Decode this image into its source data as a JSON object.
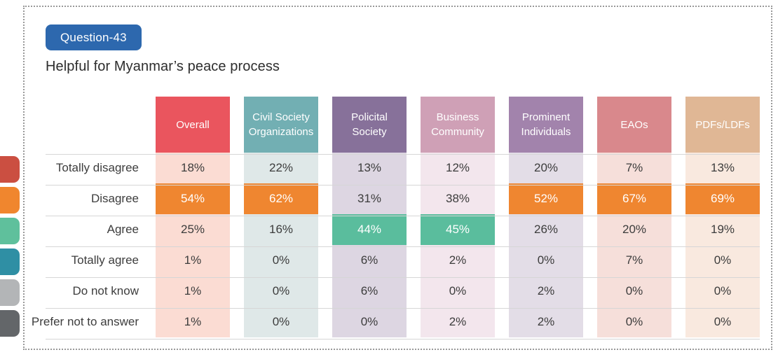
{
  "badge": {
    "label": "Question-43",
    "color": "#2d68ae"
  },
  "title": "Helpful for Myanmar’s peace process",
  "legend": [
    {
      "name": "totally-disagree",
      "color": "#cb4f41"
    },
    {
      "name": "disagree",
      "color": "#f0862e"
    },
    {
      "name": "agree",
      "color": "#5fc09c"
    },
    {
      "name": "totally-agree",
      "color": "#2f8fa4"
    },
    {
      "name": "do-not-know",
      "color": "#b3b5b7"
    },
    {
      "name": "prefer-not-to-answer",
      "color": "#636669"
    }
  ],
  "table": {
    "highlight_colors": {
      "orange": "#ef8630",
      "green": "#5abd9d"
    },
    "columns": [
      {
        "label": "Overall",
        "header_color": "#ea555e",
        "tint_color": "#fbdcd3"
      },
      {
        "label": "Civil Society Organizations",
        "header_color": "#72afb3",
        "tint_color": "#dfe8e8"
      },
      {
        "label": "Policital Society",
        "header_color": "#87719a",
        "tint_color": "#ddd6e2"
      },
      {
        "label": "Business Community",
        "header_color": "#cfa0b6",
        "tint_color": "#f3e6ed"
      },
      {
        "label": "Prominent Individuals",
        "header_color": "#a283ac",
        "tint_color": "#e3dde7"
      },
      {
        "label": "EAOs",
        "header_color": "#d9888c",
        "tint_color": "#f6dfda"
      },
      {
        "label": "PDFs/LDFs",
        "header_color": "#e0b795",
        "tint_color": "#f9e9df"
      }
    ],
    "rows": [
      {
        "label": "Totally disagree",
        "cells": [
          {
            "text": "18%"
          },
          {
            "text": "22%"
          },
          {
            "text": "13%"
          },
          {
            "text": "12%"
          },
          {
            "text": "20%"
          },
          {
            "text": "7%"
          },
          {
            "text": "13%"
          }
        ]
      },
      {
        "label": "Disagree",
        "cells": [
          {
            "text": "54%",
            "highlight": "orange"
          },
          {
            "text": "62%",
            "highlight": "orange"
          },
          {
            "text": "31%"
          },
          {
            "text": "38%"
          },
          {
            "text": "52%",
            "highlight": "orange"
          },
          {
            "text": "67%",
            "highlight": "orange"
          },
          {
            "text": "69%",
            "highlight": "orange"
          }
        ]
      },
      {
        "label": "Agree",
        "cells": [
          {
            "text": "25%"
          },
          {
            "text": "16%"
          },
          {
            "text": "44%",
            "highlight": "green"
          },
          {
            "text": "45%",
            "highlight": "green"
          },
          {
            "text": "26%"
          },
          {
            "text": "20%"
          },
          {
            "text": "19%"
          }
        ]
      },
      {
        "label": "Totally agree",
        "cells": [
          {
            "text": "1%"
          },
          {
            "text": "0%"
          },
          {
            "text": "6%"
          },
          {
            "text": "2%"
          },
          {
            "text": "0%"
          },
          {
            "text": "7%"
          },
          {
            "text": "0%"
          }
        ]
      },
      {
        "label": "Do not know",
        "cells": [
          {
            "text": "1%"
          },
          {
            "text": "0%"
          },
          {
            "text": "6%"
          },
          {
            "text": "0%"
          },
          {
            "text": "2%"
          },
          {
            "text": "0%"
          },
          {
            "text": "0%"
          }
        ]
      },
      {
        "label": "Prefer not to answer",
        "cells": [
          {
            "text": "1%"
          },
          {
            "text": "0%"
          },
          {
            "text": "0%"
          },
          {
            "text": "2%"
          },
          {
            "text": "2%"
          },
          {
            "text": "0%"
          },
          {
            "text": "0%"
          }
        ]
      }
    ]
  },
  "chart_data": {
    "type": "table",
    "title": "Helpful for Myanmar’s peace process",
    "question_label": "Question-43",
    "columns": [
      "Overall",
      "Civil Society Organizations",
      "Policital Society",
      "Business Community",
      "Prominent Individuals",
      "EAOs",
      "PDFs/LDFs"
    ],
    "rows": [
      "Totally disagree",
      "Disagree",
      "Agree",
      "Totally agree",
      "Do not know",
      "Prefer not to answer"
    ],
    "values_percent": [
      [
        18,
        22,
        13,
        12,
        20,
        7,
        13
      ],
      [
        54,
        62,
        31,
        38,
        52,
        67,
        69
      ],
      [
        25,
        16,
        44,
        45,
        26,
        20,
        19
      ],
      [
        1,
        0,
        6,
        2,
        0,
        7,
        0
      ],
      [
        1,
        0,
        6,
        0,
        2,
        0,
        0
      ],
      [
        1,
        0,
        0,
        2,
        2,
        0,
        0
      ]
    ],
    "highlighted_cells": [
      {
        "row": "Disagree",
        "columns": [
          "Overall",
          "Civil Society Organizations",
          "Prominent Individuals",
          "EAOs",
          "PDFs/LDFs"
        ],
        "color": "orange"
      },
      {
        "row": "Agree",
        "columns": [
          "Policital Society",
          "Business Community"
        ],
        "color": "green"
      }
    ]
  }
}
